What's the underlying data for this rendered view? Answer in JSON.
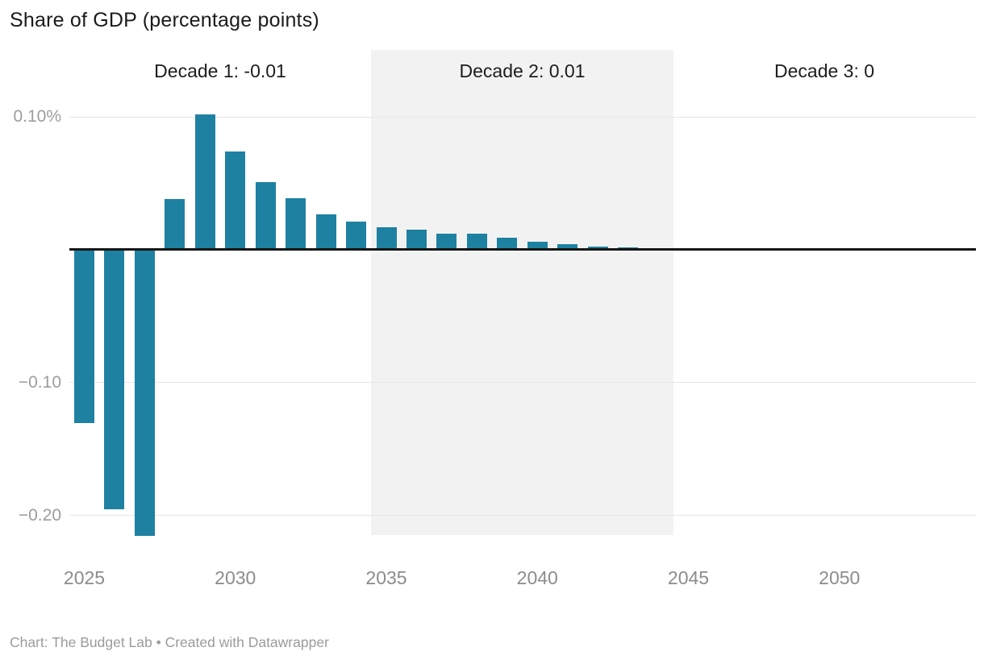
{
  "title": "Share of GDP (percentage points)",
  "footer": {
    "text": "Chart: The Budget Lab • Created with Datawrapper"
  },
  "annotations": {
    "decades": [
      {
        "label": "Decade 1: -0.01",
        "start_year": 2025,
        "end_year": 2034,
        "shaded": false
      },
      {
        "label": "Decade 2: 0.01",
        "start_year": 2035,
        "end_year": 2044,
        "shaded": true
      },
      {
        "label": "Decade 3: 0",
        "start_year": 2045,
        "end_year": 2054,
        "shaded": false
      }
    ]
  },
  "chart_data": {
    "type": "bar",
    "title": "Share of GDP (percentage points)",
    "xlabel": "",
    "ylabel": "Share of GDP (percentage points)",
    "x": [
      2025,
      2026,
      2027,
      2028,
      2029,
      2030,
      2031,
      2032,
      2033,
      2034,
      2035,
      2036,
      2037,
      2038,
      2039,
      2040,
      2041,
      2042,
      2043,
      2044,
      2045,
      2046,
      2047,
      2048,
      2049,
      2050,
      2051,
      2052,
      2053,
      2054
    ],
    "values": [
      -0.13,
      -0.195,
      -0.215,
      0.038,
      0.102,
      0.074,
      0.051,
      0.039,
      0.027,
      0.021,
      0.017,
      0.015,
      0.012,
      0.012,
      0.009,
      0.006,
      0.004,
      0.0025,
      0.002,
      0.001,
      0,
      0,
      0,
      0,
      0,
      0,
      0,
      0,
      0,
      0
    ],
    "y_ticks": [
      {
        "value": 0.1,
        "label": "0.10%"
      },
      {
        "value": -0.1,
        "label": "−0.10"
      },
      {
        "value": -0.2,
        "label": "−0.20"
      }
    ],
    "x_ticks": [
      2025,
      2030,
      2035,
      2040,
      2045,
      2050
    ],
    "ylim": [
      -0.23,
      0.15
    ],
    "grid": true,
    "legend": false,
    "bar_color": "#1e81a1",
    "band_color": "#f2f2f2",
    "gridline_color": "#e6e6e6",
    "zero_line_color": "#161616",
    "decade_sums": {
      "decade1": "-0.01",
      "decade2": "0.01",
      "decade3": "0"
    }
  }
}
